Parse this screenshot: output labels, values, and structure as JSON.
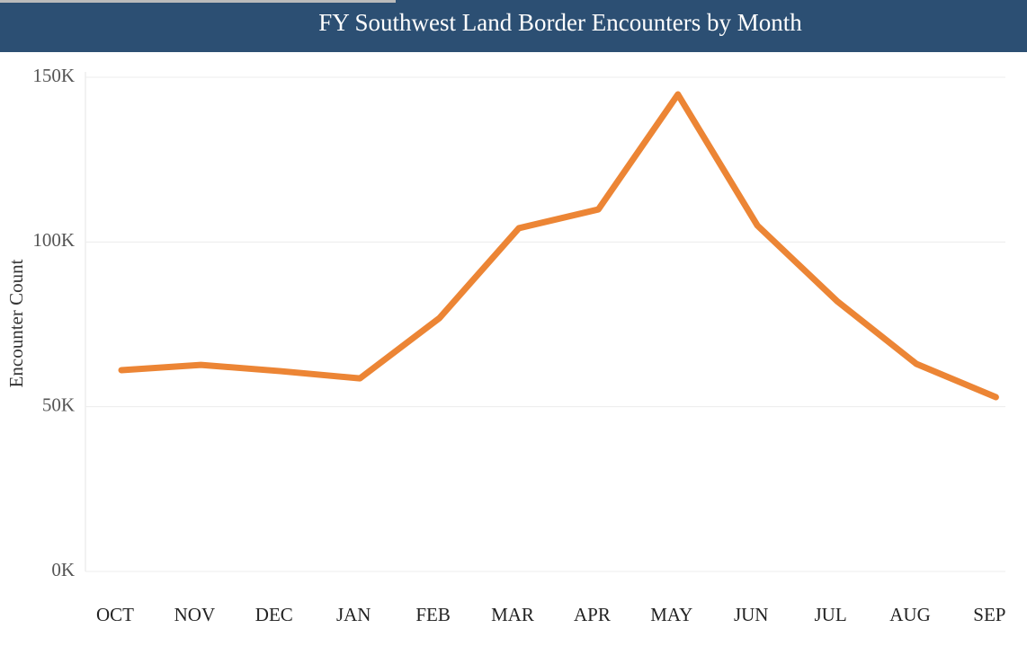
{
  "chart_data": {
    "type": "line",
    "title": "FY Southwest Land Border Encounters by Month",
    "y_label": "Encounter Count",
    "categories": [
      "OCT",
      "NOV",
      "DEC",
      "JAN",
      "FEB",
      "MAR",
      "APR",
      "MAY",
      "JUN",
      "JUL",
      "AUG",
      "SEP"
    ],
    "series": [
      {
        "name": "Encounters",
        "color": "#ec8535",
        "values": [
          61100,
          62700,
          60800,
          58600,
          76900,
          104200,
          109900,
          144800,
          105000,
          82100,
          63000,
          52900
        ]
      }
    ],
    "ylim": [
      0,
      150000
    ],
    "yticks": [
      {
        "value": 0,
        "label": "0K"
      },
      {
        "value": 50000,
        "label": "50K"
      },
      {
        "value": 100000,
        "label": "100K"
      },
      {
        "value": 150000,
        "label": "150K"
      }
    ],
    "grid": true
  }
}
